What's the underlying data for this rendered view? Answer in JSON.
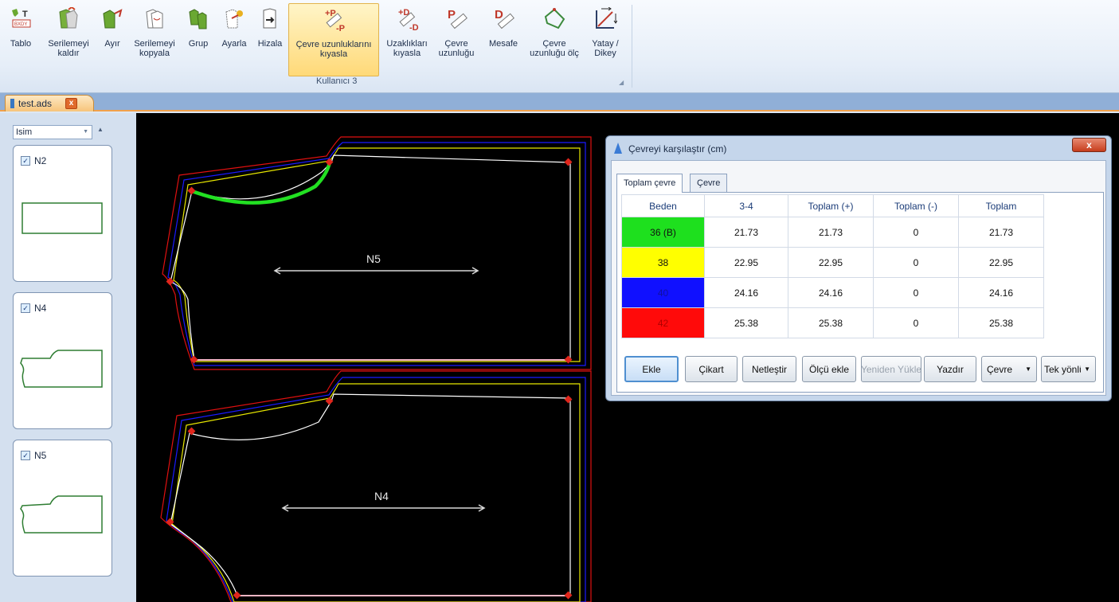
{
  "ribbon": {
    "buttons": [
      {
        "id": "tablo",
        "label": "Tablo",
        "icon": "table-icon"
      },
      {
        "id": "serilemeyi-kaldir",
        "label": "Serilemeyi\nkaldır",
        "icon": "remove-grading-icon"
      },
      {
        "id": "ayir",
        "label": "Ayır",
        "icon": "split-icon"
      },
      {
        "id": "serilemeyi-kopyala",
        "label": "Serilemeyi\nkopyala",
        "icon": "copy-grading-icon"
      },
      {
        "id": "grup",
        "label": "Grup",
        "icon": "group-icon"
      },
      {
        "id": "ayarla",
        "label": "Ayarla",
        "icon": "adjust-icon"
      },
      {
        "id": "hizala",
        "label": "Hizala",
        "icon": "align-icon"
      },
      {
        "id": "cevre-uzunluklarini-kiyasla",
        "label": "Çevre uzunluklarını\nkıyasla",
        "icon": "compare-perimeter-icon"
      },
      {
        "id": "uzakliklari-kiyasla",
        "label": "Uzaklıkları\nkıyasla",
        "icon": "compare-distance-icon"
      },
      {
        "id": "cevre-uzunlugu",
        "label": "Çevre\nuzunluğu",
        "icon": "perimeter-length-icon"
      },
      {
        "id": "mesafe",
        "label": "Mesafe",
        "icon": "distance-icon"
      },
      {
        "id": "cevre-uzunlugu-olc",
        "label": "Çevre\nuzunluğu ölç",
        "icon": "measure-perimeter-icon"
      },
      {
        "id": "yatay-dikey",
        "label": "Yatay /\nDikey",
        "icon": "horizontal-vertical-icon"
      }
    ],
    "group_label": "Kullanıcı 3"
  },
  "document_tab": {
    "label": "test.ads",
    "close": "x"
  },
  "left_panel": {
    "sort_select": "Isim",
    "pieces": [
      {
        "name": "N2",
        "checked": true
      },
      {
        "name": "N4",
        "checked": true
      },
      {
        "name": "N5",
        "checked": true
      }
    ]
  },
  "canvas": {
    "piece_labels": [
      "N5",
      "N4"
    ],
    "colors": {
      "bg": "#000000",
      "size_36": "#ffffff",
      "size_38": "#e8e800",
      "size_40": "#1a1aff",
      "size_42": "#e01010",
      "highlight": "#22e022"
    }
  },
  "dialog": {
    "title": "Çevreyi karşılaştır (cm)",
    "close": "x",
    "tabs": [
      "Toplam çevre",
      "Çevre"
    ],
    "columns": [
      "Beden",
      "3-4",
      "Toplam (+)",
      "Toplam (-)",
      "Toplam"
    ],
    "rows": [
      {
        "beden": "36 (B)",
        "c34": "21.73",
        "plus": "21.73",
        "minus": "0",
        "total": "21.73",
        "color": "#1ee01e"
      },
      {
        "beden": "38",
        "c34": "22.95",
        "plus": "22.95",
        "minus": "0",
        "total": "22.95",
        "color": "#ffff00"
      },
      {
        "beden": "40",
        "c34": "24.16",
        "plus": "24.16",
        "minus": "0",
        "total": "24.16",
        "color": "#1010ff"
      },
      {
        "beden": "42",
        "c34": "25.38",
        "plus": "25.38",
        "minus": "0",
        "total": "25.38",
        "color": "#ff0a0a"
      }
    ],
    "buttons": {
      "ekle": "Ekle",
      "cikart": "Çikart",
      "netlestir": "Netleştir",
      "olcu_ekle": "Ölçü ekle",
      "yeniden_yukle": "Yeniden Yükle",
      "yazdir": "Yazdır",
      "cevre_combo": "Çevre",
      "yon_combo": "Tek yönlü"
    }
  }
}
